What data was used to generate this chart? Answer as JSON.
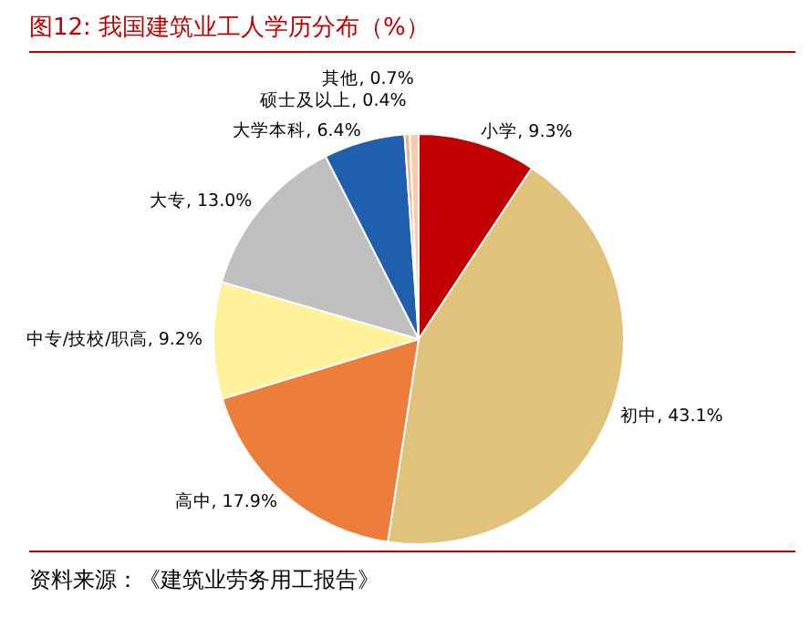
{
  "chart_data": {
    "type": "pie",
    "title": "图12:   我国建筑业工人学历分布（%）",
    "categories": [
      "小学",
      "初中",
      "高中",
      "中专/技校/职高",
      "大专",
      "大学本科",
      "硕士及以上",
      "其他"
    ],
    "values": [
      9.3,
      43.1,
      17.9,
      9.2,
      13.0,
      6.4,
      0.4,
      0.7
    ],
    "value_labels": [
      "9.3%",
      "43.1%",
      "17.9%",
      "9.2%",
      "13.0%",
      "6.4%",
      "0.4%",
      "0.7%"
    ],
    "colors": [
      "#c00000",
      "#e0c27a",
      "#ed7d3b",
      "#fff29a",
      "#bfbfbf",
      "#1f5fad",
      "#f4b183",
      "#f8cbad"
    ],
    "legend": false,
    "annotations": [
      "资料来源：《建筑业劳务用工报告》"
    ]
  }
}
